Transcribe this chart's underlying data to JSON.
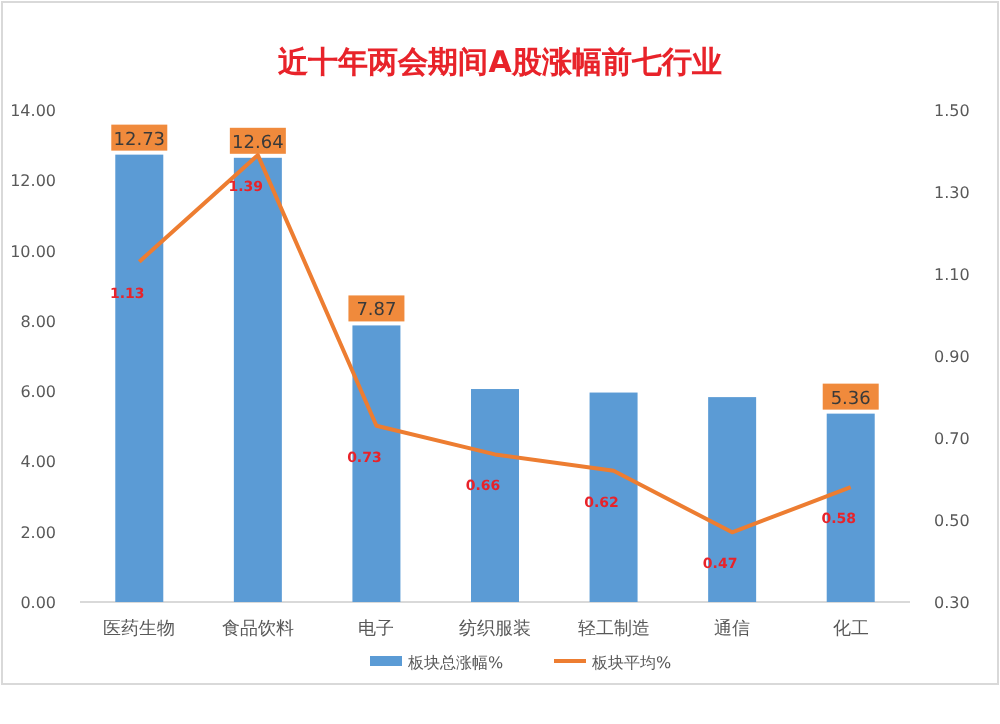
{
  "chart_data": {
    "type": "bar",
    "title": "近十年两会期间A股涨幅前七行业",
    "categories": [
      "医药生物",
      "食品饮料",
      "电子",
      "纺织服装",
      "轻工制造",
      "通信",
      "化工"
    ],
    "series": [
      {
        "name": "板块总涨幅%",
        "color": "#5b9bd5",
        "values": [
          12.73,
          12.64,
          7.87,
          6.06,
          5.96,
          5.83,
          5.36
        ],
        "value_labels": [
          "12.73",
          "12.64",
          "7.87",
          null,
          null,
          null,
          "5.36"
        ]
      },
      {
        "name": "板块平均%",
        "type": "line",
        "axis": "y2",
        "color": "#ed7d31",
        "values": [
          1.13,
          1.39,
          0.73,
          0.66,
          0.62,
          0.47,
          0.58
        ],
        "value_labels": [
          "1.13",
          "1.39",
          "0.73",
          "0.66",
          "0.62",
          "0.47",
          "0.58"
        ]
      }
    ],
    "ylim": [
      0,
      14
    ],
    "yticks": [
      {
        "value": 0,
        "label": "0.00"
      },
      {
        "value": 2,
        "label": "2.00"
      },
      {
        "value": 4,
        "label": "4.00"
      },
      {
        "value": 6,
        "label": "6.00"
      },
      {
        "value": 8,
        "label": "8.00"
      },
      {
        "value": 10,
        "label": "10.00"
      },
      {
        "value": 12,
        "label": "12.00"
      },
      {
        "value": 14,
        "label": "14.00"
      }
    ],
    "y2lim": [
      0.3,
      1.5
    ],
    "y2ticks": [
      {
        "value": 0.3,
        "label": "0.30"
      },
      {
        "value": 0.5,
        "label": "0.50"
      },
      {
        "value": 0.7,
        "label": "0.70"
      },
      {
        "value": 0.9,
        "label": "0.90"
      },
      {
        "value": 1.1,
        "label": "1.10"
      },
      {
        "value": 1.3,
        "label": "1.30"
      },
      {
        "value": 1.5,
        "label": "1.50"
      }
    ],
    "legend": "bottom"
  }
}
